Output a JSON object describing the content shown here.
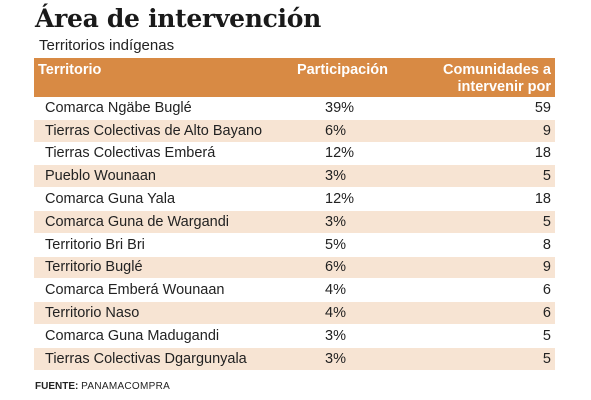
{
  "title": "Área de intervención",
  "subtitle": "Territorios indígenas",
  "colors": {
    "header": "#d88a44",
    "row_odd": "#ffffff",
    "row_even": "#f7e4d3"
  },
  "table": {
    "headers": {
      "territorio": "Territorio",
      "participacion": "Participación",
      "comunidades_line1": "Comunidades a",
      "comunidades_line2": "intervenir por territorio"
    },
    "rows": [
      {
        "territorio": "Comarca Ngäbe Buglé",
        "participacion": "39%",
        "comunidades": "59"
      },
      {
        "territorio": "Tierras Colectivas de Alto Bayano",
        "participacion": "6%",
        "comunidades": "9"
      },
      {
        "territorio": "Tierras Colectivas Emberá",
        "participacion": "12%",
        "comunidades": "18"
      },
      {
        "territorio": "Pueblo Wounaan",
        "participacion": "3%",
        "comunidades": "5"
      },
      {
        "territorio": "Comarca Guna Yala",
        "participacion": "12%",
        "comunidades": "18"
      },
      {
        "territorio": "Comarca Guna de Wargandi",
        "participacion": "3%",
        "comunidades": "5"
      },
      {
        "territorio": "Territorio Bri Bri",
        "participacion": "5%",
        "comunidades": "8"
      },
      {
        "territorio": "Territorio Buglé",
        "participacion": "6%",
        "comunidades": "9"
      },
      {
        "territorio": "Comarca Emberá Wounaan",
        "participacion": "4%",
        "comunidades": "6"
      },
      {
        "territorio": "Territorio Naso",
        "participacion": "4%",
        "comunidades": "6"
      },
      {
        "territorio": "Comarca Guna Madugandi",
        "participacion": "3%",
        "comunidades": "5"
      },
      {
        "territorio": "Tierras Colectivas Dgargunyala",
        "participacion": "3%",
        "comunidades": "5"
      }
    ]
  },
  "source": {
    "label": "FUENTE:",
    "value": "PANAMACOMPRA"
  }
}
